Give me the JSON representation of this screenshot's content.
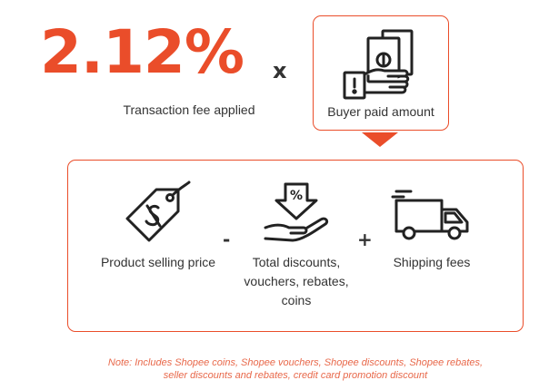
{
  "rate": {
    "value": "2.12%",
    "operator": "x",
    "caption": "Transaction fee applied"
  },
  "buyer": {
    "label": "Buyer paid amount",
    "icon": "hand-with-cash-icon"
  },
  "formula": {
    "items": [
      {
        "label": "Product selling price",
        "icon": "price-tag-icon"
      },
      {
        "label": "Total discounts, vouchers, rebates, coins",
        "icon": "discount-hand-icon"
      },
      {
        "label": "Shipping fees",
        "icon": "delivery-truck-icon"
      }
    ],
    "operators": [
      "-",
      "+"
    ]
  },
  "note": {
    "line1": "Note: Includes Shopee coins, Shopee vouchers, Shopee discounts, Shopee rebates,",
    "line2": "seller discounts and rebates, credit card promotion discount"
  },
  "colors": {
    "accent": "#ea4d2a",
    "text": "#333333",
    "note": "#e8684a"
  }
}
